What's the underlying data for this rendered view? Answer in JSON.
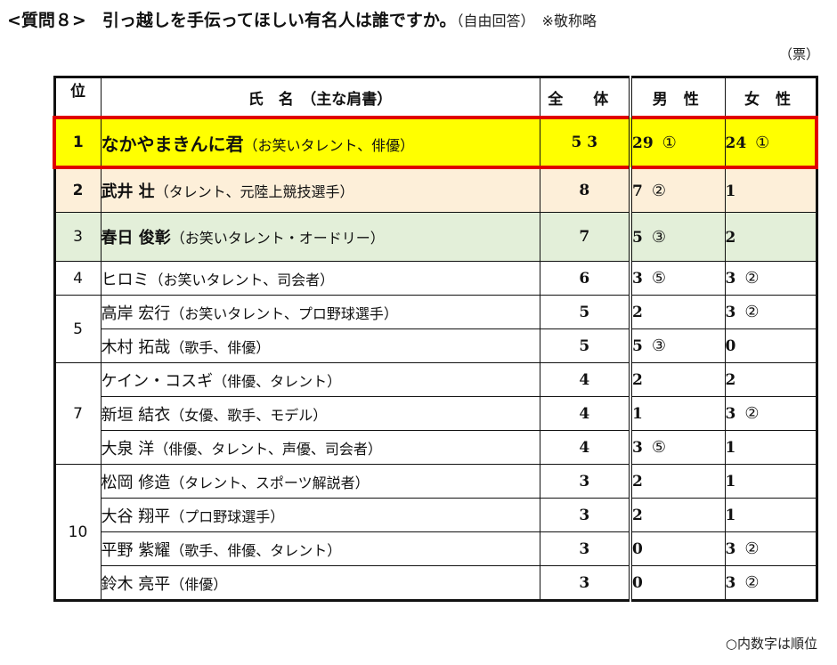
{
  "header": {
    "question_label": "<質問８>",
    "question_text": "引っ越しを手伝ってほしい有名人は誰ですか。",
    "answer_type": "（自由回答）",
    "honorific_note": "※敬称略",
    "unit": "（票）"
  },
  "table": {
    "columns": {
      "rank": "位",
      "name": "氏　名　（主な肩書）",
      "total": "全 体",
      "male": "男 性",
      "female": "女 性"
    },
    "rows": [
      {
        "rank": "1",
        "name": "なかやまきんに君",
        "role": "（お笑いタレント、俳優）",
        "total": "5 3",
        "male": "29",
        "male_rank": "①",
        "female": "24",
        "female_rank": "①"
      },
      {
        "rank": "2",
        "name": "武井 壮",
        "role": "（タレント、元陸上競技選手）",
        "total": "8",
        "male": "7",
        "male_rank": "②",
        "female": "1",
        "female_rank": ""
      },
      {
        "rank": "3",
        "name": "春日 俊彰",
        "role": "（お笑いタレント・オードリー）",
        "total": "7",
        "male": "5",
        "male_rank": "③",
        "female": "2",
        "female_rank": ""
      },
      {
        "rank": "4",
        "name": "ヒロミ",
        "role": "（お笑いタレント、司会者）",
        "total": "6",
        "male": "3",
        "male_rank": "⑤",
        "female": "3",
        "female_rank": "②"
      },
      {
        "rank": "5",
        "name": "高岸 宏行",
        "role": "（お笑いタレント、プロ野球選手）",
        "total": "5",
        "male": "2",
        "male_rank": "",
        "female": "3",
        "female_rank": "②"
      },
      {
        "rank": "",
        "name": "木村 拓哉",
        "role": "（歌手、俳優）",
        "total": "5",
        "male": "5",
        "male_rank": "③",
        "female": "0",
        "female_rank": ""
      },
      {
        "rank": "7",
        "name": "ケイン・コスギ",
        "role": "（俳優、タレント）",
        "total": "4",
        "male": "2",
        "male_rank": "",
        "female": "2",
        "female_rank": ""
      },
      {
        "rank": "",
        "name": "新垣 結衣",
        "role": "（女優、歌手、モデル）",
        "total": "4",
        "male": "1",
        "male_rank": "",
        "female": "3",
        "female_rank": "②"
      },
      {
        "rank": "",
        "name": "大泉 洋",
        "role": "（俳優、タレント、声優、司会者）",
        "total": "4",
        "male": "3",
        "male_rank": "⑤",
        "female": "1",
        "female_rank": ""
      },
      {
        "rank": "10",
        "name": "松岡 修造",
        "role": "（タレント、スポーツ解説者）",
        "total": "3",
        "male": "2",
        "male_rank": "",
        "female": "1",
        "female_rank": ""
      },
      {
        "rank": "",
        "name": "大谷 翔平",
        "role": "（プロ野球選手）",
        "total": "3",
        "male": "2",
        "male_rank": "",
        "female": "1",
        "female_rank": ""
      },
      {
        "rank": "",
        "name": "平野 紫耀",
        "role": "（歌手、俳優、タレント）",
        "total": "3",
        "male": "0",
        "male_rank": "",
        "female": "3",
        "female_rank": "②"
      },
      {
        "rank": "",
        "name": "鈴木 亮平",
        "role": "（俳優）",
        "total": "3",
        "male": "0",
        "male_rank": "",
        "female": "3",
        "female_rank": "②"
      }
    ]
  },
  "footnote": "○内数字は順位",
  "colors": {
    "rank1_bg": "#ffff00",
    "rank1_border": "#e00000",
    "rank2_bg": "#fdefd9",
    "rank3_bg": "#e3efd9"
  }
}
